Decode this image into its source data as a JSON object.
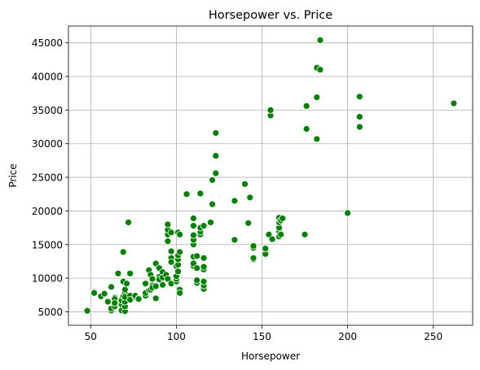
{
  "chart_data": {
    "type": "scatter",
    "title": "Horsepower vs. Price",
    "xlabel": "Horsepower",
    "ylabel": "Price",
    "xlim": [
      37,
      273
    ],
    "ylim": [
      3000,
      47500
    ],
    "xticks": [
      50,
      100,
      150,
      200,
      250
    ],
    "yticks": [
      5000,
      10000,
      15000,
      20000,
      25000,
      30000,
      35000,
      40000,
      45000
    ],
    "grid": true,
    "color": "#008000",
    "points": [
      [
        48,
        5151
      ],
      [
        52,
        7950
      ],
      [
        52,
        7800
      ],
      [
        56,
        7300
      ],
      [
        58,
        7700
      ],
      [
        60,
        6500
      ],
      [
        62,
        5200
      ],
      [
        62,
        5500
      ],
      [
        62,
        8700
      ],
      [
        64,
        7100
      ],
      [
        64,
        6900
      ],
      [
        64,
        5800
      ],
      [
        64,
        6300
      ],
      [
        66,
        10700
      ],
      [
        68,
        6100
      ],
      [
        68,
        6700
      ],
      [
        68,
        5200
      ],
      [
        69,
        13900
      ],
      [
        69,
        9500
      ],
      [
        69,
        7300
      ],
      [
        70,
        5100
      ],
      [
        70,
        5800
      ],
      [
        70,
        7800
      ],
      [
        70,
        8300
      ],
      [
        70,
        6500
      ],
      [
        70,
        7200
      ],
      [
        71,
        9200
      ],
      [
        72,
        18300
      ],
      [
        73,
        10700
      ],
      [
        73,
        7400
      ],
      [
        73,
        6800
      ],
      [
        76,
        7200
      ],
      [
        76,
        7400
      ],
      [
        78,
        7000
      ],
      [
        78,
        6900
      ],
      [
        82,
        7400
      ],
      [
        82,
        7800
      ],
      [
        82,
        9200
      ],
      [
        84,
        8200
      ],
      [
        84,
        11200
      ],
      [
        85,
        10500
      ],
      [
        85,
        8300
      ],
      [
        86,
        8900
      ],
      [
        86,
        8600
      ],
      [
        86,
        9900
      ],
      [
        88,
        7000
      ],
      [
        88,
        12200
      ],
      [
        88,
        8800
      ],
      [
        90,
        11500
      ],
      [
        90,
        10200
      ],
      [
        90,
        9800
      ],
      [
        92,
        10900
      ],
      [
        92,
        9000
      ],
      [
        92,
        10100
      ],
      [
        94,
        10500
      ],
      [
        95,
        15500
      ],
      [
        95,
        16500
      ],
      [
        95,
        17200
      ],
      [
        95,
        18000
      ],
      [
        95,
        9900
      ],
      [
        97,
        13000
      ],
      [
        97,
        12400
      ],
      [
        97,
        14000
      ],
      [
        97,
        9200
      ],
      [
        97,
        16800
      ],
      [
        100,
        9500
      ],
      [
        100,
        9900
      ],
      [
        100,
        10300
      ],
      [
        100,
        11800
      ],
      [
        101,
        11000
      ],
      [
        101,
        12000
      ],
      [
        101,
        12800
      ],
      [
        101,
        13400
      ],
      [
        101,
        16800
      ],
      [
        102,
        8300
      ],
      [
        102,
        7800
      ],
      [
        102,
        13900
      ],
      [
        102,
        16500
      ],
      [
        106,
        22500
      ],
      [
        110,
        11800
      ],
      [
        110,
        12200
      ],
      [
        110,
        13200
      ],
      [
        110,
        15000
      ],
      [
        110,
        15700
      ],
      [
        110,
        16400
      ],
      [
        110,
        17800
      ],
      [
        110,
        18900
      ],
      [
        112,
        9300
      ],
      [
        112,
        9700
      ],
      [
        112,
        11500
      ],
      [
        112,
        13300
      ],
      [
        114,
        22600
      ],
      [
        114,
        16500
      ],
      [
        114,
        16900
      ],
      [
        114,
        17500
      ],
      [
        116,
        8400
      ],
      [
        116,
        8900
      ],
      [
        116,
        9500
      ],
      [
        116,
        11300
      ],
      [
        116,
        11700
      ],
      [
        116,
        13000
      ],
      [
        116,
        17800
      ],
      [
        120,
        18300
      ],
      [
        121,
        21000
      ],
      [
        121,
        24600
      ],
      [
        123,
        25600
      ],
      [
        123,
        28200
      ],
      [
        123,
        31600
      ],
      [
        134,
        15700
      ],
      [
        134,
        21500
      ],
      [
        140,
        24000
      ],
      [
        142,
        18200
      ],
      [
        143,
        22000
      ],
      [
        145,
        12800
      ],
      [
        145,
        13000
      ],
      [
        145,
        14500
      ],
      [
        145,
        14800
      ],
      [
        152,
        13600
      ],
      [
        152,
        14400
      ],
      [
        154,
        16500
      ],
      [
        155,
        34200
      ],
      [
        155,
        35000
      ],
      [
        156,
        15800
      ],
      [
        160,
        16200
      ],
      [
        160,
        17000
      ],
      [
        160,
        17500
      ],
      [
        160,
        18300
      ],
      [
        160,
        18800
      ],
      [
        160,
        19000
      ],
      [
        161,
        16500
      ],
      [
        161,
        18600
      ],
      [
        162,
        18900
      ],
      [
        175,
        16500
      ],
      [
        176,
        32200
      ],
      [
        176,
        35600
      ],
      [
        182,
        30700
      ],
      [
        182,
        36900
      ],
      [
        182,
        41300
      ],
      [
        184,
        41000
      ],
      [
        184,
        45400
      ],
      [
        200,
        19700
      ],
      [
        207,
        32500
      ],
      [
        207,
        34000
      ],
      [
        207,
        37000
      ],
      [
        262,
        36000
      ]
    ]
  }
}
